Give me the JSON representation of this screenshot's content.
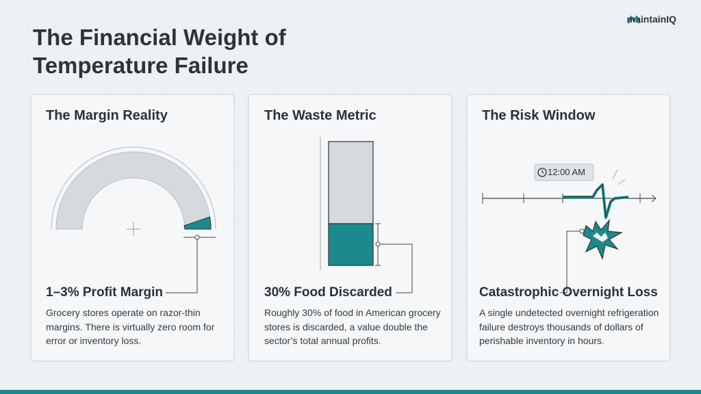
{
  "header": {
    "title": "The Financial Weight of Temperature Failure",
    "logo": "maintainIQ"
  },
  "cards": [
    {
      "title": "The Margin Reality",
      "metric": "1–3% Profit Margin",
      "description": "Grocery stores operate on razor-thin margins. There is virtually zero room for error or inventory loss."
    },
    {
      "title": "The Waste Metric",
      "metric": "30% Food Discarded",
      "description": "Roughly 30% of food in American grocery stores is discarded, a value double the sector’s total annual profits."
    },
    {
      "title": "The Risk Window",
      "metric": "Catastrophic Overnight Loss",
      "description": "A single undetected overnight refrigeration failure destroys thousands of dollars of perishable inventory in hours.",
      "time_label": "12:00 AM"
    }
  ]
}
